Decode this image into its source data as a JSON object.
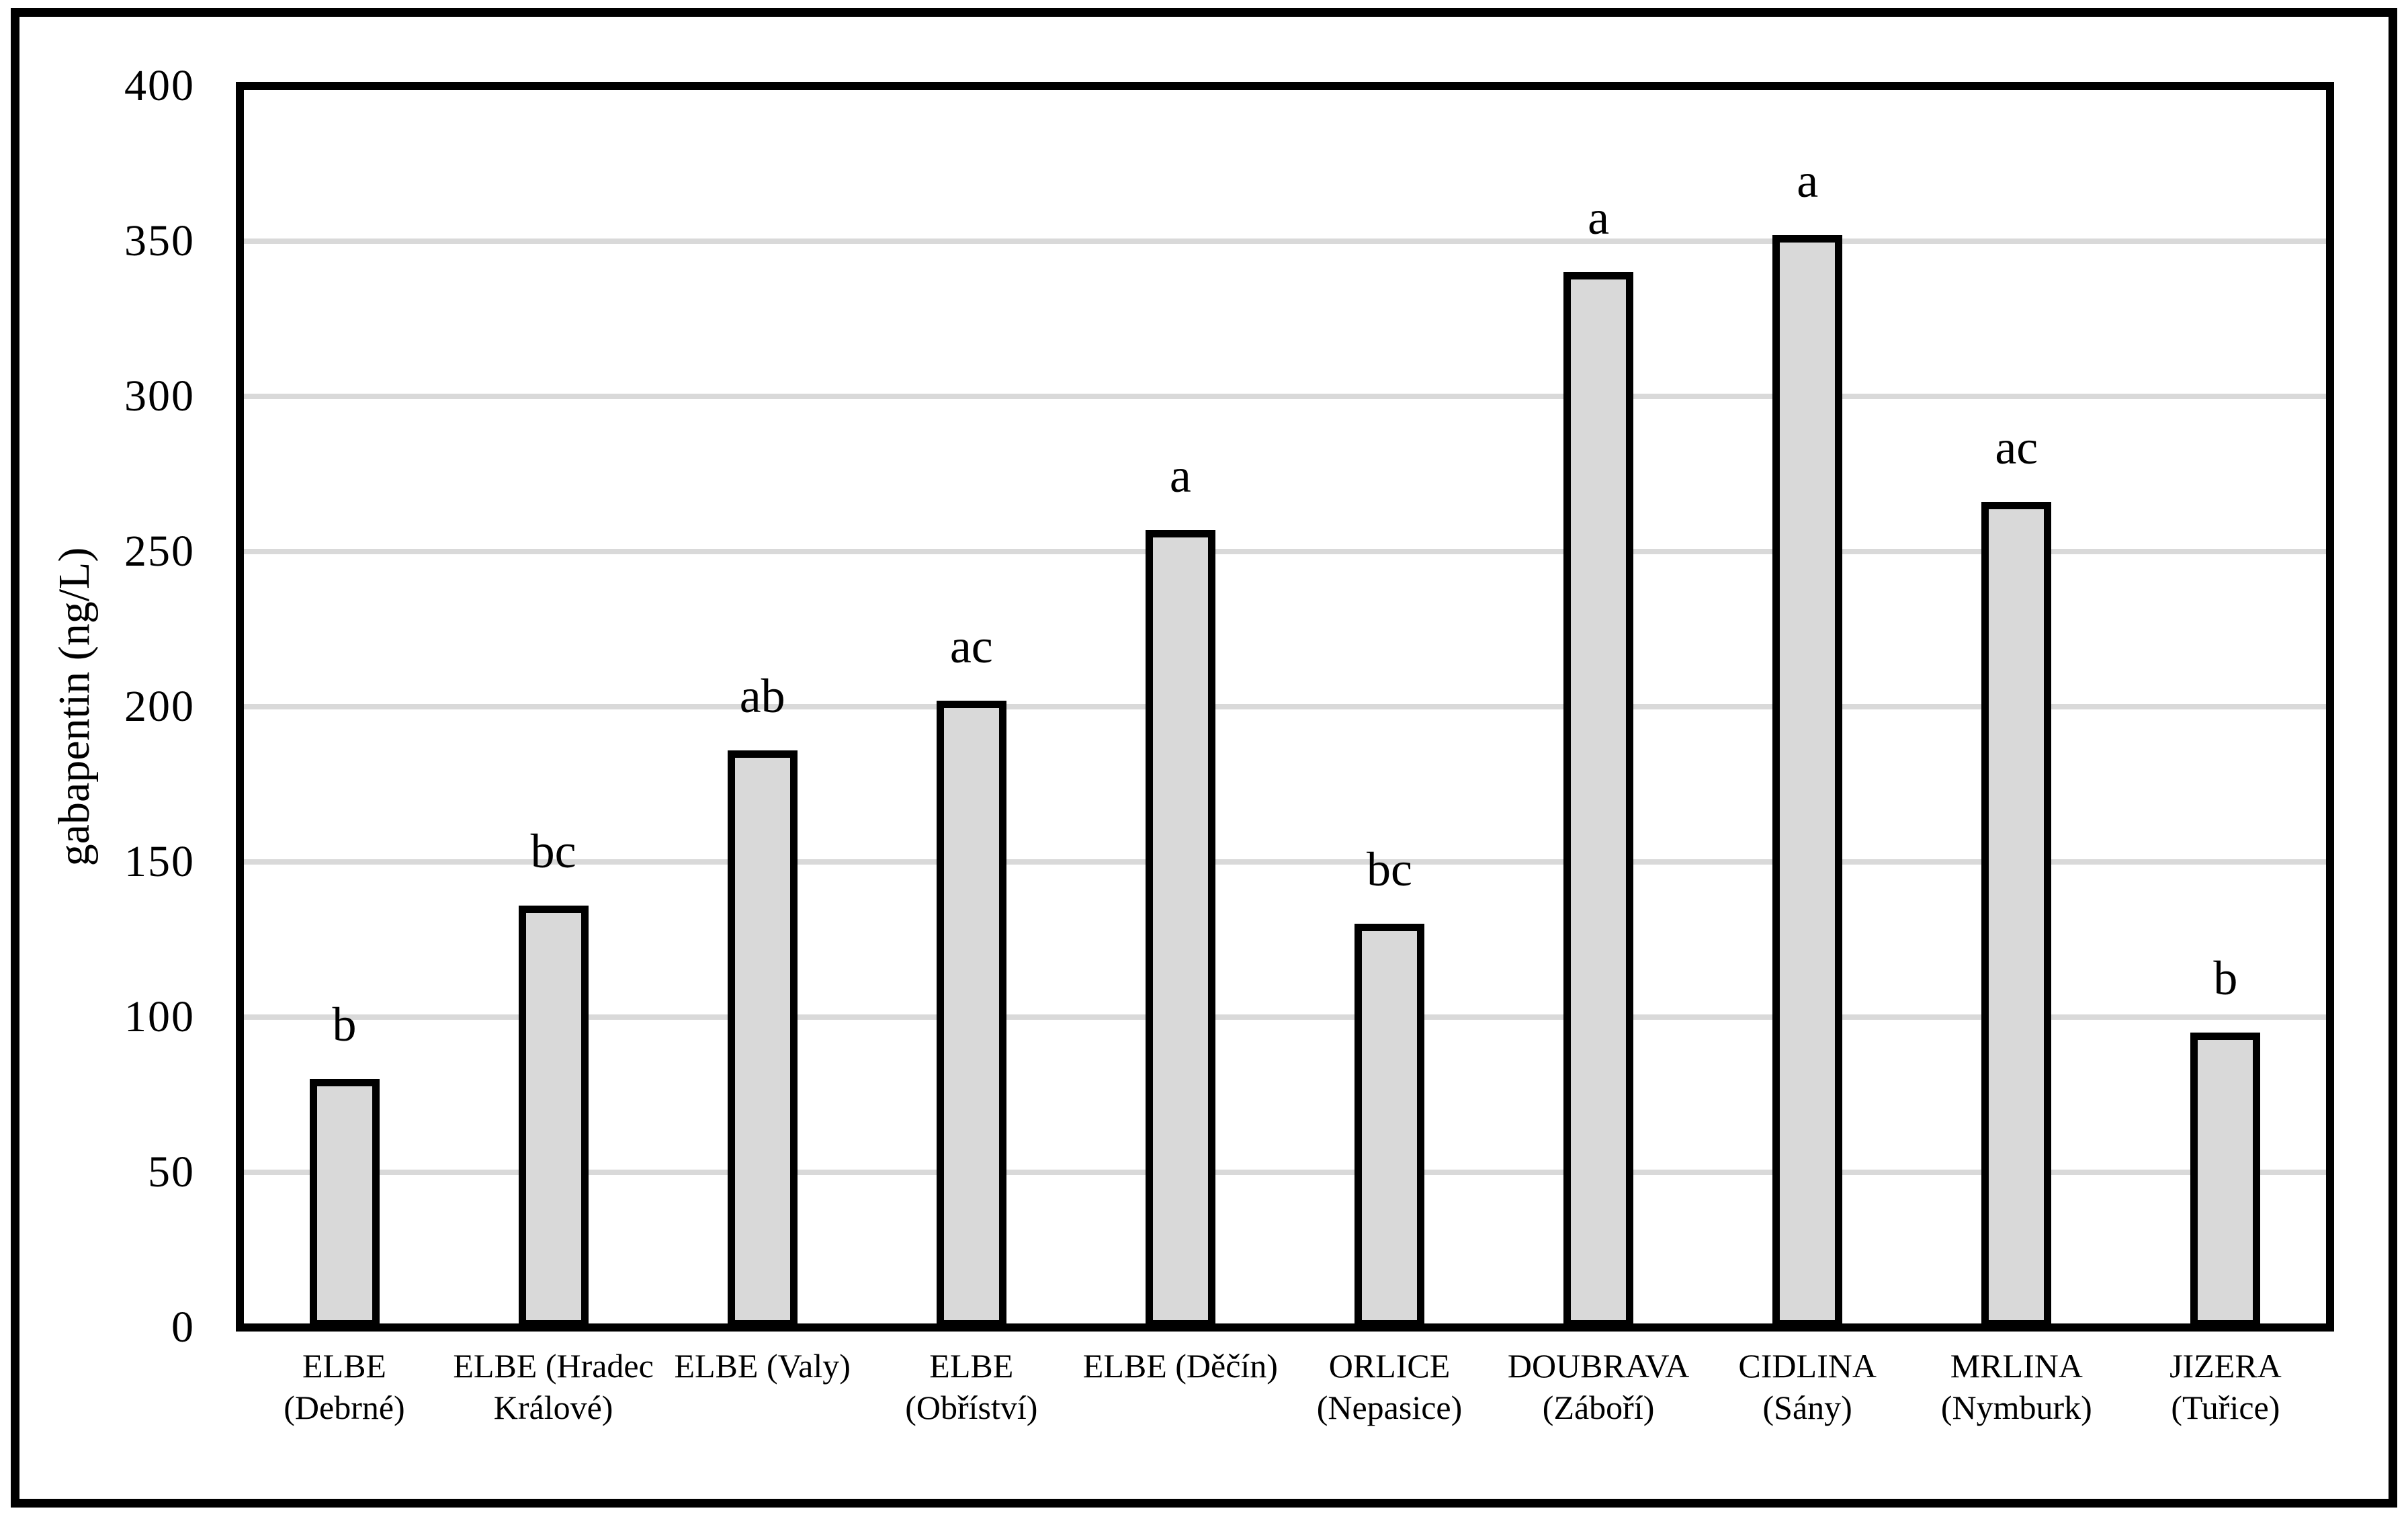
{
  "chart_data": {
    "type": "bar",
    "title": "",
    "xlabel": "",
    "ylabel": "gabapentin (ng/L)",
    "ylim": [
      0,
      400
    ],
    "ytick_step": 50,
    "ytick_labels": [
      "0",
      "50",
      "100",
      "150",
      "200",
      "250",
      "300",
      "350",
      "400"
    ],
    "grid": true,
    "legend_position": "none",
    "categories": [
      "ELBE (Debrné)",
      "ELBE (Hradec Králové)",
      "ELBE (Valy)",
      "ELBE (Obříství)",
      "ELBE (Děčín)",
      "ORLICE (Nepasice)",
      "DOUBRAVA (Záboří)",
      "CIDLINA (Sány)",
      "MRLINA (Nymburk)",
      "JIZERA (Tuřice)"
    ],
    "category_label_lines": [
      [
        "ELBE",
        "(Debrné)"
      ],
      [
        "ELBE (Hradec",
        "Králové)"
      ],
      [
        "ELBE (Valy)"
      ],
      [
        "ELBE",
        "(Obříství)"
      ],
      [
        "ELBE (Děčín)"
      ],
      [
        "ORLICE",
        "(Nepasice)"
      ],
      [
        "DOUBRAVA",
        "(Záboří)"
      ],
      [
        "CIDLINA",
        "(Sány)"
      ],
      [
        "MRLINA",
        "(Nymburk)"
      ],
      [
        "JIZERA",
        "(Tuřice)"
      ]
    ],
    "values": [
      80,
      136,
      186,
      202,
      257,
      130,
      340,
      352,
      266,
      95
    ],
    "significance_letters": [
      "b",
      "bc",
      "ab",
      "ac",
      "a",
      "bc",
      "a",
      "a",
      "ac",
      "b"
    ],
    "colors": {
      "bar_fill": "#d9d9d9",
      "bar_border": "#000000",
      "gridline": "#d9d9d9",
      "plot_border": "#000000",
      "frame_border": "#000000",
      "background": "#ffffff",
      "text": "#000000"
    }
  }
}
